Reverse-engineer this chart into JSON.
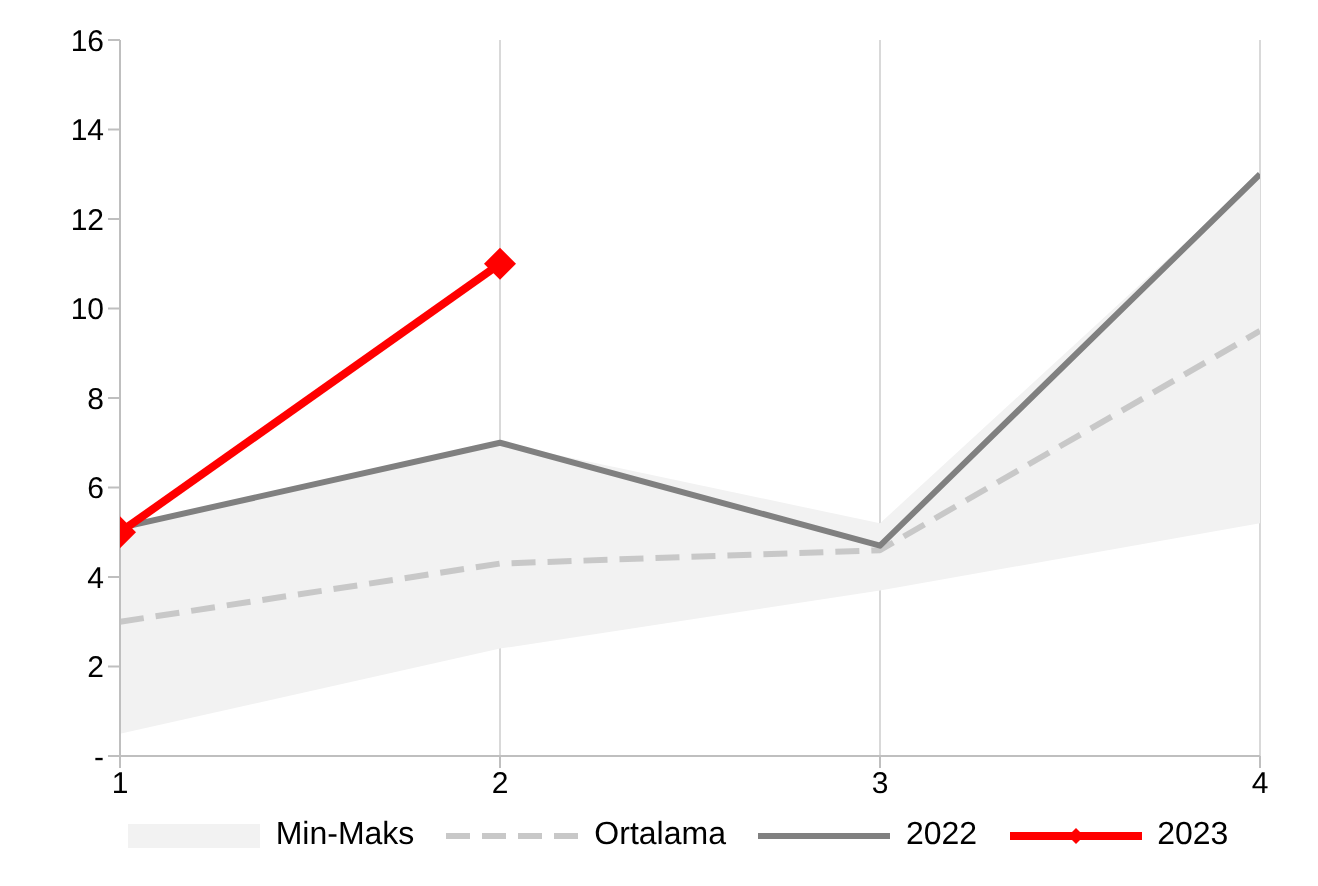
{
  "chart_data": {
    "type": "line",
    "x": [
      1,
      2,
      3,
      4
    ],
    "xlim": [
      1,
      4
    ],
    "xticks": [
      1,
      2,
      3,
      4
    ],
    "ylim": [
      0,
      16
    ],
    "yticks": [
      {
        "value": 0,
        "label": "-"
      },
      2,
      4,
      6,
      8,
      10,
      12,
      14,
      16
    ],
    "grid": "x",
    "legend": "bottom",
    "annotations": [
      "Min-Maks"
    ],
    "series": [
      {
        "name": "Ortalama",
        "color": "#c8c8c8",
        "line_style": "dashed",
        "marker": "none",
        "values": [
          3.0,
          4.3,
          4.6,
          9.5
        ],
        "lower": [
          0.5,
          2.4,
          3.7,
          5.2
        ],
        "upper": [
          5.1,
          7.0,
          5.2,
          13.0
        ]
      },
      {
        "name": "2022",
        "color": "#808080",
        "line_style": "solid",
        "marker": "none",
        "values": [
          5.1,
          7.0,
          4.7,
          13.0
        ]
      },
      {
        "name": "2023",
        "color": "#ff0000",
        "line_style": "solid",
        "marker": "diamond",
        "values": [
          5.0,
          11.0,
          null,
          null
        ]
      }
    ]
  }
}
